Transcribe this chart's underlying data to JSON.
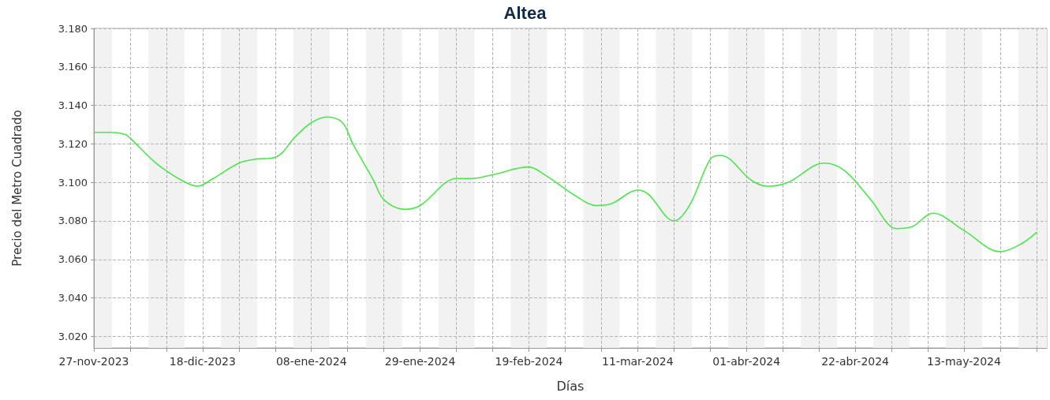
{
  "chart_data": {
    "type": "line",
    "title": "Altea",
    "xlabel": "Días",
    "ylabel": "Precio del Metro Cuadrado",
    "x": [
      "2023-11-27",
      "2023-11-30",
      "2023-12-03",
      "2023-12-04",
      "2023-12-09",
      "2023-12-14",
      "2023-12-17",
      "2023-12-20",
      "2023-12-25",
      "2023-12-28",
      "2024-01-01",
      "2024-01-05",
      "2024-01-08",
      "2024-01-11",
      "2024-01-14",
      "2024-01-16",
      "2024-01-20",
      "2024-01-22",
      "2024-01-26",
      "2024-01-29",
      "2024-02-05",
      "2024-02-08",
      "2024-02-12",
      "2024-02-19",
      "2024-02-22",
      "2024-02-28",
      "2024-03-03",
      "2024-03-06",
      "2024-03-11",
      "2024-03-13",
      "2024-03-18",
      "2024-03-21",
      "2024-03-25",
      "2024-03-27",
      "2024-04-02",
      "2024-04-05",
      "2024-04-09",
      "2024-04-16",
      "2024-04-20",
      "2024-04-25",
      "2024-04-30",
      "2024-05-03",
      "2024-05-07",
      "2024-05-13",
      "2024-05-20",
      "2024-05-24",
      "2024-05-27"
    ],
    "series": [
      {
        "color": "#4ce64c",
        "values": [
          3.126,
          3.126,
          3.125,
          3.123,
          3.11,
          3.101,
          3.098,
          3.102,
          3.11,
          3.112,
          3.113,
          3.124,
          3.131,
          3.134,
          3.131,
          3.12,
          3.101,
          3.091,
          3.086,
          3.088,
          3.102,
          3.102,
          3.104,
          3.108,
          3.104,
          3.093,
          3.088,
          3.089,
          3.096,
          3.094,
          3.08,
          3.088,
          3.112,
          3.114,
          3.101,
          3.098,
          3.1,
          3.11,
          3.106,
          3.091,
          3.076,
          3.077,
          3.084,
          3.075,
          3.064,
          3.068,
          3.074
        ]
      }
    ],
    "xlim": [
      "2023-11-27",
      "2024-05-29"
    ],
    "xticks": [
      {
        "value": "2023-11-27",
        "label": "27-nov-2023"
      },
      {
        "value": "2023-12-04",
        "label": null
      },
      {
        "value": "2023-12-11",
        "label": null
      },
      {
        "value": "2023-12-18",
        "label": "18-dic-2023"
      },
      {
        "value": "2023-12-25",
        "label": null
      },
      {
        "value": "2024-01-01",
        "label": null
      },
      {
        "value": "2024-01-08",
        "label": "08-ene-2024"
      },
      {
        "value": "2024-01-15",
        "label": null
      },
      {
        "value": "2024-01-22",
        "label": null
      },
      {
        "value": "2024-01-29",
        "label": "29-ene-2024"
      },
      {
        "value": "2024-02-05",
        "label": null
      },
      {
        "value": "2024-02-12",
        "label": null
      },
      {
        "value": "2024-02-19",
        "label": "19-feb-2024"
      },
      {
        "value": "2024-02-26",
        "label": null
      },
      {
        "value": "2024-03-04",
        "label": null
      },
      {
        "value": "2024-03-11",
        "label": "11-mar-2024"
      },
      {
        "value": "2024-03-18",
        "label": null
      },
      {
        "value": "2024-03-25",
        "label": null
      },
      {
        "value": "2024-04-01",
        "label": "01-abr-2024"
      },
      {
        "value": "2024-04-08",
        "label": null
      },
      {
        "value": "2024-04-15",
        "label": null
      },
      {
        "value": "2024-04-22",
        "label": "22-abr-2024"
      },
      {
        "value": "2024-04-29",
        "label": null
      },
      {
        "value": "2024-05-06",
        "label": null
      },
      {
        "value": "2024-05-13",
        "label": "13-may-2024"
      },
      {
        "value": "2024-05-20",
        "label": null
      },
      {
        "value": "2024-05-27",
        "label": null
      }
    ],
    "ylim": [
      3.014,
      3.18
    ],
    "yticks": [
      {
        "value": 3.02,
        "label": "3.020"
      },
      {
        "value": 3.04,
        "label": "3.040"
      },
      {
        "value": 3.06,
        "label": "3.060"
      },
      {
        "value": 3.08,
        "label": "3.080"
      },
      {
        "value": 3.1,
        "label": "3.100"
      },
      {
        "value": 3.12,
        "label": "3.120"
      },
      {
        "value": 3.14,
        "label": "3.140"
      },
      {
        "value": 3.16,
        "label": "3.160"
      },
      {
        "value": 3.18,
        "label": "3.180"
      }
    ],
    "bands": [
      {
        "axis": "x",
        "from": "2023-11-27",
        "to": "2023-11-30T12:00",
        "color": "#f2f2f2"
      },
      {
        "axis": "x",
        "from": "2023-12-07T12:00",
        "to": "2023-12-14T12:00",
        "color": "#f2f2f2"
      },
      {
        "axis": "x",
        "from": "2023-12-21T12:00",
        "to": "2023-12-28T12:00",
        "color": "#f2f2f2"
      },
      {
        "axis": "x",
        "from": "2024-01-04T12:00",
        "to": "2024-01-11T12:00",
        "color": "#f2f2f2"
      },
      {
        "axis": "x",
        "from": "2024-01-18T12:00",
        "to": "2024-01-25T12:00",
        "color": "#f2f2f2"
      },
      {
        "axis": "x",
        "from": "2024-02-01T12:00",
        "to": "2024-02-08T12:00",
        "color": "#f2f2f2"
      },
      {
        "axis": "x",
        "from": "2024-02-15T12:00",
        "to": "2024-02-22T12:00",
        "color": "#f2f2f2"
      },
      {
        "axis": "x",
        "from": "2024-02-29T12:00",
        "to": "2024-03-07T12:00",
        "color": "#f2f2f2"
      },
      {
        "axis": "x",
        "from": "2024-03-14T12:00",
        "to": "2024-03-21T12:00",
        "color": "#f2f2f2"
      },
      {
        "axis": "x",
        "from": "2024-03-28T12:00",
        "to": "2024-04-04T12:00",
        "color": "#f2f2f2"
      },
      {
        "axis": "x",
        "from": "2024-04-11T12:00",
        "to": "2024-04-18T12:00",
        "color": "#f2f2f2"
      },
      {
        "axis": "x",
        "from": "2024-04-25T12:00",
        "to": "2024-05-02T12:00",
        "color": "#f2f2f2"
      },
      {
        "axis": "x",
        "from": "2024-05-09T12:00",
        "to": "2024-05-16T12:00",
        "color": "#f2f2f2"
      },
      {
        "axis": "x",
        "from": "2024-05-23T12:00",
        "to": "2024-05-29",
        "color": "#f2f2f2"
      }
    ],
    "grid": true,
    "marker": "none",
    "line_style": "solid"
  }
}
